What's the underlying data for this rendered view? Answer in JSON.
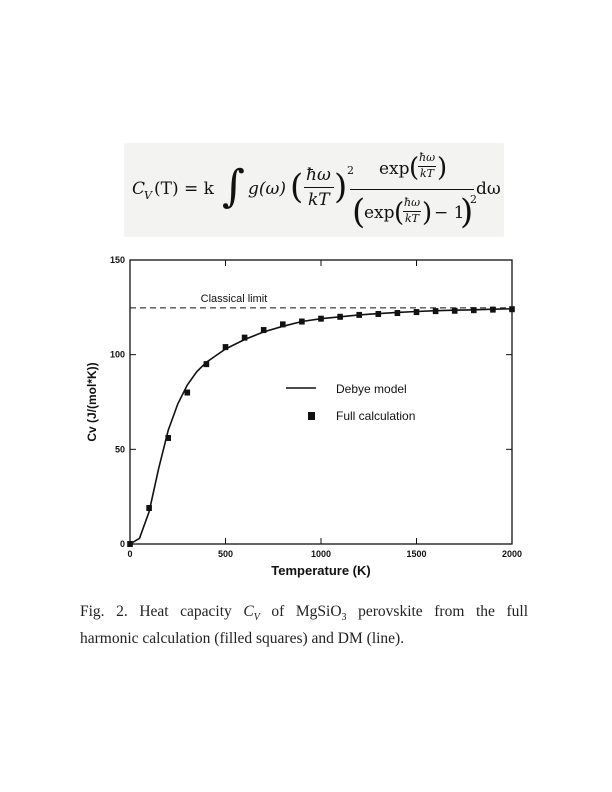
{
  "equation": {
    "lhs": "C",
    "lhs_sub": "V",
    "lhs_arg": "(T) = k",
    "integrand": "g(ω)",
    "num1": "ħω",
    "den1": "kT",
    "power": "2",
    "exp_word": "exp",
    "small_num": "ħω",
    "small_den": "kT",
    "minus_one": "− 1",
    "tail": "dω"
  },
  "chart_data": {
    "type": "line",
    "xlabel": "Temperature (K)",
    "ylabel": "Cv (J/(mol*K))",
    "xlim": [
      0,
      2000
    ],
    "ylim": [
      0,
      150
    ],
    "xticks": [
      0,
      500,
      1000,
      1500,
      2000
    ],
    "yticks": [
      0,
      50,
      100,
      150
    ],
    "xtick_labels": [
      "0",
      "500",
      "1000",
      "1500",
      "2000"
    ],
    "ytick_labels": [
      "0",
      "50",
      "100",
      "150"
    ],
    "annotation": "Classical limit",
    "classical_limit": 124.7,
    "legend_position": "center-right",
    "series": [
      {
        "name": "Debye model",
        "style": "line",
        "x": [
          0,
          50,
          100,
          150,
          200,
          250,
          300,
          350,
          400,
          450,
          500,
          600,
          700,
          800,
          900,
          1000,
          1100,
          1200,
          1300,
          1400,
          1500,
          1600,
          1700,
          1800,
          1900,
          2000
        ],
        "y": [
          0,
          3,
          17,
          40,
          60,
          74,
          84,
          91,
          96,
          99.5,
          103,
          108,
          112,
          115,
          117.5,
          119,
          120,
          121,
          121.7,
          122.3,
          122.8,
          123.2,
          123.5,
          123.7,
          124,
          124.2
        ]
      },
      {
        "name": "Full calculation",
        "style": "markers",
        "x": [
          0,
          100,
          200,
          300,
          400,
          500,
          600,
          700,
          800,
          900,
          1000,
          1100,
          1200,
          1300,
          1400,
          1500,
          1600,
          1700,
          1800,
          1900,
          2000
        ],
        "y": [
          0,
          19,
          56,
          80,
          95,
          104,
          109,
          113,
          116,
          117.5,
          119,
          120,
          121,
          121.5,
          122,
          122.5,
          123,
          123.2,
          123.5,
          123.8,
          124
        ]
      }
    ]
  },
  "caption": {
    "line1_a": "Fig. 2. Heat capacity ",
    "cv": "C",
    "cv_sub": "V",
    "line1_b": " of MgSiO",
    "sub3": "3",
    "line1_c": " perovskite from the full",
    "line2": "harmonic calculation (filled squares) and DM (line)."
  }
}
